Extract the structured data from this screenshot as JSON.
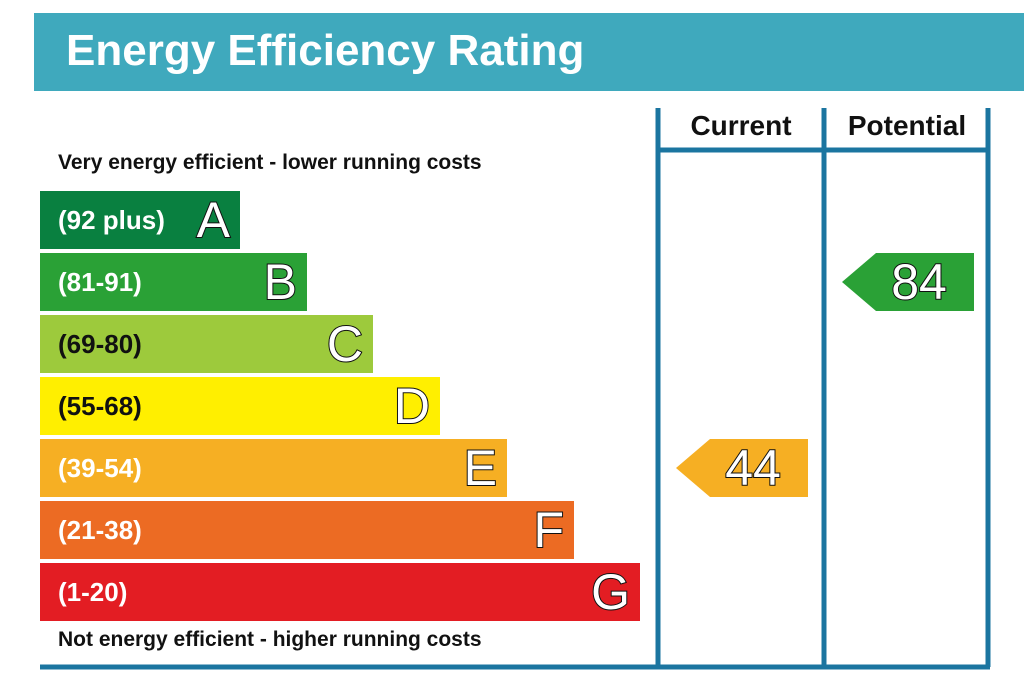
{
  "header": {
    "title": "Energy Efficiency Rating",
    "color": "#3fa9bd"
  },
  "captions": {
    "top": "Very energy efficient - lower running costs",
    "bottom": "Not energy efficient - higher running costs"
  },
  "columns": {
    "current": "Current",
    "potential": "Potential"
  },
  "frame_color": "#1b75a0",
  "chart_data": {
    "type": "bar",
    "bands": [
      {
        "range": "(92 plus)",
        "letter": "A",
        "color": "#098040",
        "min": 92,
        "max": 100
      },
      {
        "range": "(81-91)",
        "letter": "B",
        "color": "#2aa136",
        "min": 81,
        "max": 91
      },
      {
        "range": "(69-80)",
        "letter": "C",
        "color": "#9dca3c",
        "min": 69,
        "max": 80
      },
      {
        "range": "(55-68)",
        "letter": "D",
        "color": "#ffef00",
        "min": 55,
        "max": 68
      },
      {
        "range": "(39-54)",
        "letter": "E",
        "color": "#f6af23",
        "min": 39,
        "max": 54
      },
      {
        "range": "(21-38)",
        "letter": "F",
        "color": "#ec6b23",
        "min": 21,
        "max": 38
      },
      {
        "range": "(1-20)",
        "letter": "G",
        "color": "#e31d23",
        "min": 1,
        "max": 20
      }
    ],
    "ratings": {
      "current": {
        "value": 44,
        "band": "E",
        "color": "#f6af23"
      },
      "potential": {
        "value": 84,
        "band": "B",
        "color": "#2aa136"
      }
    }
  }
}
